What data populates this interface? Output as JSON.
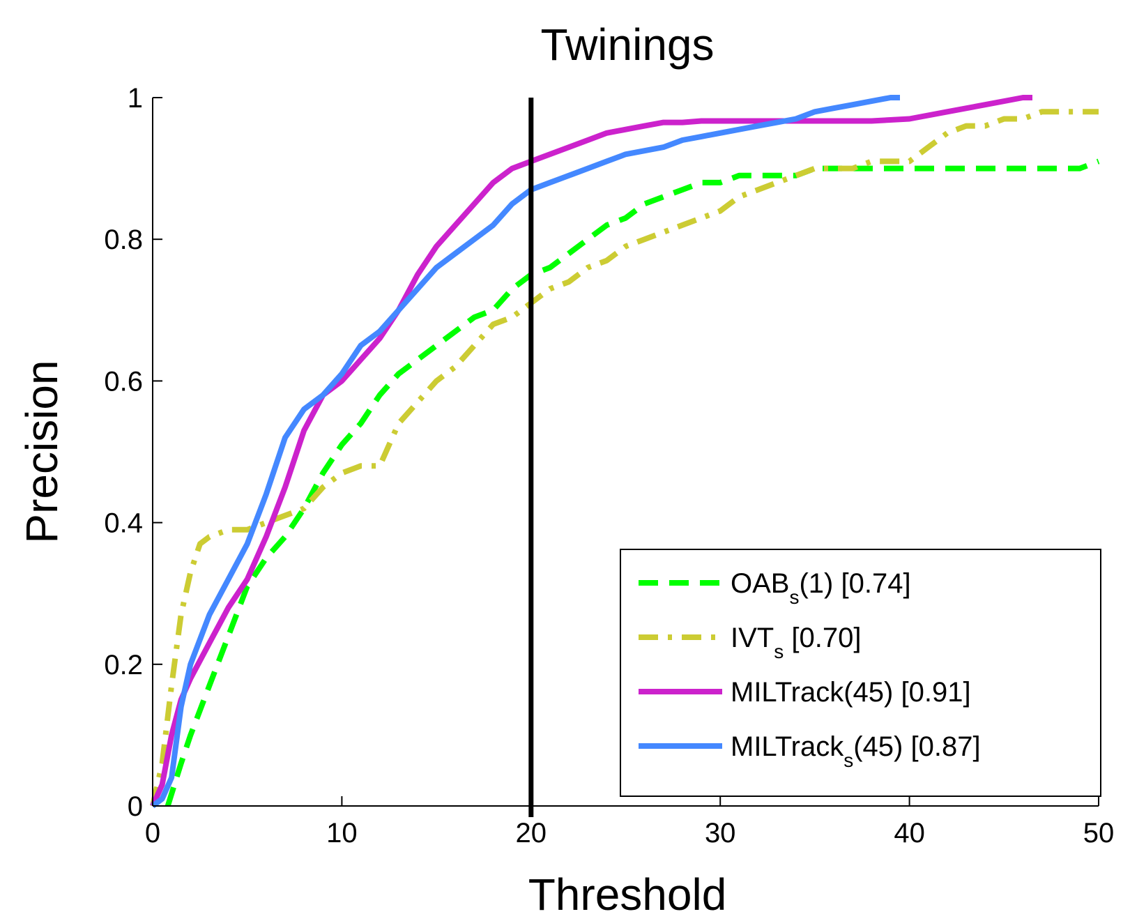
{
  "chart_data": {
    "type": "line",
    "title": "Twinings",
    "xlabel": "Threshold",
    "ylabel": "Precision",
    "xlim": [
      0,
      50
    ],
    "ylim": [
      0,
      1
    ],
    "xticks": [
      0,
      10,
      20,
      30,
      40,
      50
    ],
    "xtick_labels": [
      "0",
      "10",
      "20",
      "30",
      "40",
      "50"
    ],
    "yticks": [
      0,
      0.2,
      0.4,
      0.6,
      0.8,
      1
    ],
    "ytick_labels": [
      "0",
      "0.2",
      "0.4",
      "0.6",
      "0.8",
      "1"
    ],
    "grid": false,
    "legend_position": "lower-right",
    "reference_line": {
      "x": 20,
      "color": "#000000"
    },
    "series": [
      {
        "name": "OAB(1) [0.74]",
        "legend": {
          "main": "OAB",
          "sub": "s",
          "rest": "(1) [0.74]"
        },
        "color": "#00ff00",
        "dash": "dashed",
        "x": [
          0.8,
          1.5,
          2,
          3,
          4,
          5,
          6,
          7,
          8,
          9,
          10,
          11,
          12,
          13,
          14,
          15,
          16,
          17,
          18,
          19,
          20,
          21,
          22,
          23,
          24,
          25,
          26,
          27,
          28,
          29,
          30,
          31,
          32,
          33,
          34,
          35,
          36,
          38,
          40,
          42,
          44,
          46,
          48,
          49,
          50
        ],
        "y": [
          0,
          0.06,
          0.1,
          0.17,
          0.24,
          0.31,
          0.35,
          0.38,
          0.42,
          0.47,
          0.51,
          0.54,
          0.58,
          0.61,
          0.63,
          0.65,
          0.67,
          0.69,
          0.7,
          0.73,
          0.75,
          0.76,
          0.78,
          0.8,
          0.82,
          0.83,
          0.85,
          0.86,
          0.87,
          0.88,
          0.88,
          0.89,
          0.89,
          0.89,
          0.89,
          0.9,
          0.9,
          0.9,
          0.9,
          0.9,
          0.9,
          0.9,
          0.9,
          0.9,
          0.91
        ]
      },
      {
        "name": "IVT [0.70]",
        "legend": {
          "main": "IVT",
          "sub": "s",
          "rest": " [0.70]"
        },
        "color": "#cccc33",
        "dash": "dashdot",
        "x": [
          0,
          0.5,
          1,
          1.5,
          2,
          2.5,
          3,
          4,
          5,
          6,
          7,
          8,
          9,
          10,
          11,
          12,
          13,
          14,
          15,
          16,
          17,
          18,
          19,
          20,
          21,
          22,
          23,
          24,
          25,
          26,
          27,
          28,
          29,
          30,
          31,
          32,
          33,
          34,
          35,
          36,
          37,
          38,
          39,
          40,
          41,
          42,
          43,
          44,
          45,
          46,
          47,
          48,
          49,
          50
        ],
        "y": [
          0,
          0.06,
          0.17,
          0.27,
          0.33,
          0.37,
          0.38,
          0.39,
          0.39,
          0.4,
          0.41,
          0.42,
          0.45,
          0.47,
          0.48,
          0.48,
          0.54,
          0.57,
          0.6,
          0.62,
          0.65,
          0.68,
          0.69,
          0.71,
          0.73,
          0.74,
          0.76,
          0.77,
          0.79,
          0.8,
          0.81,
          0.82,
          0.83,
          0.84,
          0.86,
          0.87,
          0.88,
          0.89,
          0.9,
          0.9,
          0.9,
          0.91,
          0.91,
          0.91,
          0.93,
          0.95,
          0.96,
          0.96,
          0.97,
          0.97,
          0.98,
          0.98,
          0.98,
          0.98
        ]
      },
      {
        "name": "MILTrack(45) [0.91]",
        "legend": {
          "main": "MILTrack(45) [0.91]",
          "sub": "",
          "rest": ""
        },
        "color": "#cc22cc",
        "dash": "solid",
        "x": [
          0,
          0.5,
          1,
          1.5,
          2,
          3,
          4,
          5,
          6,
          7,
          8,
          9,
          10,
          11,
          12,
          13,
          14,
          15,
          16,
          17,
          18,
          19,
          20,
          21,
          22,
          23,
          24,
          25,
          26,
          27,
          28,
          29,
          30,
          32,
          34,
          36,
          38,
          40,
          42,
          44,
          46,
          46.5
        ],
        "y": [
          0,
          0.03,
          0.1,
          0.15,
          0.18,
          0.23,
          0.28,
          0.32,
          0.38,
          0.45,
          0.53,
          0.58,
          0.6,
          0.63,
          0.66,
          0.7,
          0.75,
          0.79,
          0.82,
          0.85,
          0.88,
          0.9,
          0.91,
          0.92,
          0.93,
          0.94,
          0.95,
          0.955,
          0.96,
          0.965,
          0.965,
          0.967,
          0.967,
          0.967,
          0.967,
          0.967,
          0.967,
          0.97,
          0.98,
          0.99,
          1,
          1
        ]
      },
      {
        "name": "MILTrack(45) [0.87]",
        "legend": {
          "main": "MILTrack",
          "sub": "s",
          "rest": "(45) [0.87]"
        },
        "color": "#4488ff",
        "dash": "solid",
        "x": [
          0,
          0.5,
          1,
          1.5,
          2,
          3,
          4,
          5,
          6,
          7,
          8,
          9,
          10,
          11,
          12,
          13,
          14,
          15,
          16,
          17,
          18,
          19,
          20,
          21,
          22,
          23,
          24,
          25,
          26,
          27,
          28,
          29,
          30,
          31,
          32,
          33,
          34,
          35,
          36,
          37,
          38,
          39,
          39.5
        ],
        "y": [
          0,
          0.01,
          0.04,
          0.14,
          0.2,
          0.27,
          0.32,
          0.37,
          0.44,
          0.52,
          0.56,
          0.58,
          0.61,
          0.65,
          0.67,
          0.7,
          0.73,
          0.76,
          0.78,
          0.8,
          0.82,
          0.85,
          0.87,
          0.88,
          0.89,
          0.9,
          0.91,
          0.92,
          0.925,
          0.93,
          0.94,
          0.945,
          0.95,
          0.955,
          0.96,
          0.965,
          0.97,
          0.98,
          0.985,
          0.99,
          0.995,
          1,
          1
        ]
      }
    ]
  }
}
